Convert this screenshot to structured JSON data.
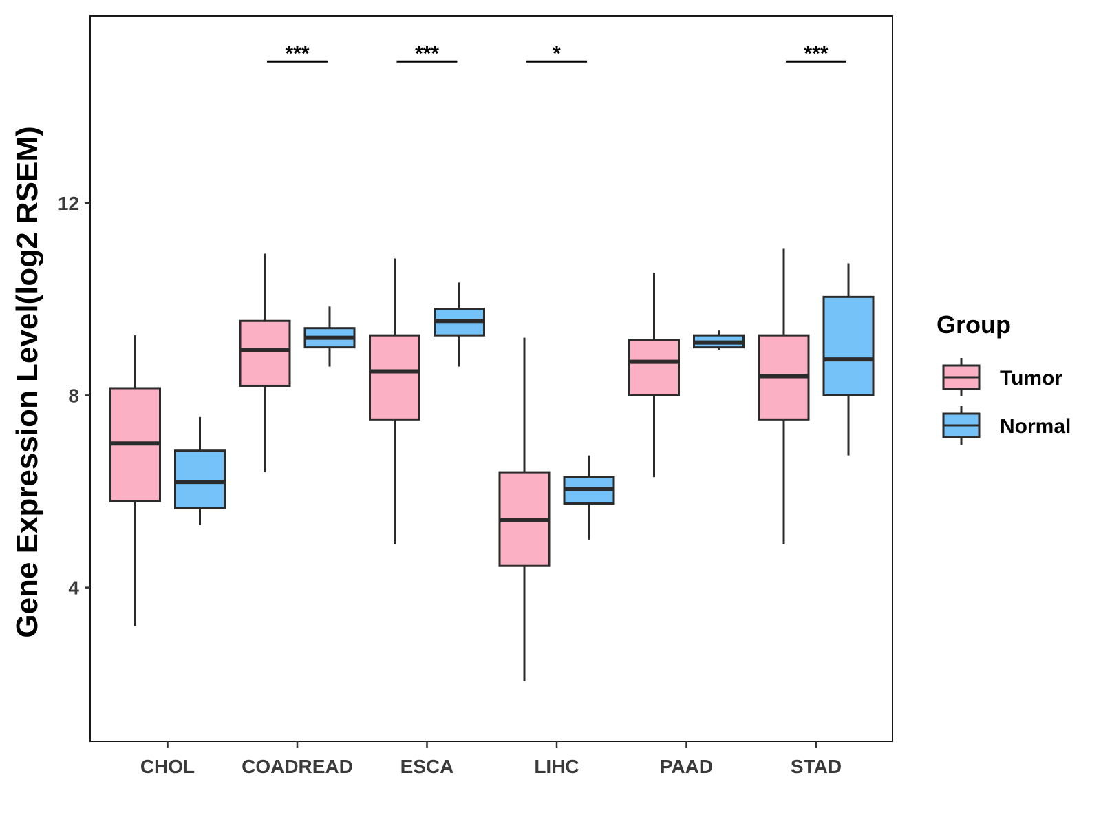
{
  "chart_data": {
    "type": "boxplot",
    "title": "",
    "xlabel": "",
    "ylabel": "Gene Expression Level(log2 RSEM)",
    "ylim": [
      0.8,
      15.9
    ],
    "yticks": [
      4,
      8,
      12
    ],
    "ytick_labels": [
      "4",
      "8",
      "12"
    ],
    "grid": false,
    "categories": [
      "CHOL",
      "COADREAD",
      "ESCA",
      "LIHC",
      "PAAD",
      "STAD"
    ],
    "series": [
      {
        "name": "Tumor",
        "color": "#FBB1C3",
        "boxes": [
          {
            "whisker_low": 3.2,
            "q1": 5.8,
            "median": 7.0,
            "q3": 8.15,
            "whisker_high": 9.25
          },
          {
            "whisker_low": 6.4,
            "q1": 8.2,
            "median": 8.95,
            "q3": 9.55,
            "whisker_high": 10.95
          },
          {
            "whisker_low": 4.9,
            "q1": 7.5,
            "median": 8.5,
            "q3": 9.25,
            "whisker_high": 10.85
          },
          {
            "whisker_low": 2.05,
            "q1": 4.45,
            "median": 5.4,
            "q3": 6.4,
            "whisker_high": 9.2
          },
          {
            "whisker_low": 6.3,
            "q1": 8.0,
            "median": 8.7,
            "q3": 9.15,
            "whisker_high": 10.55
          },
          {
            "whisker_low": 4.9,
            "q1": 7.5,
            "median": 8.4,
            "q3": 9.25,
            "whisker_high": 11.05
          }
        ]
      },
      {
        "name": "Normal",
        "color": "#74C2F7",
        "boxes": [
          {
            "whisker_low": 5.3,
            "q1": 5.65,
            "median": 6.2,
            "q3": 6.85,
            "whisker_high": 7.55
          },
          {
            "whisker_low": 8.6,
            "q1": 9.0,
            "median": 9.2,
            "q3": 9.4,
            "whisker_high": 9.85
          },
          {
            "whisker_low": 8.6,
            "q1": 9.25,
            "median": 9.55,
            "q3": 9.8,
            "whisker_high": 10.35
          },
          {
            "whisker_low": 5.0,
            "q1": 5.75,
            "median": 6.05,
            "q3": 6.3,
            "whisker_high": 6.75
          },
          {
            "whisker_low": 8.95,
            "q1": 9.0,
            "median": 9.1,
            "q3": 9.25,
            "whisker_high": 9.35
          },
          {
            "whisker_low": 6.75,
            "q1": 8.0,
            "median": 8.75,
            "q3": 10.05,
            "whisker_high": 10.75
          }
        ]
      }
    ],
    "significance": [
      {
        "category": "COADREAD",
        "label": "***"
      },
      {
        "category": "ESCA",
        "label": "***"
      },
      {
        "category": "LIHC",
        "label": "*"
      },
      {
        "category": "STAD",
        "label": "***"
      }
    ],
    "significance_level": 14.95,
    "legend": {
      "title": "Group",
      "position": "right",
      "entries": [
        "Tumor",
        "Normal"
      ]
    }
  }
}
